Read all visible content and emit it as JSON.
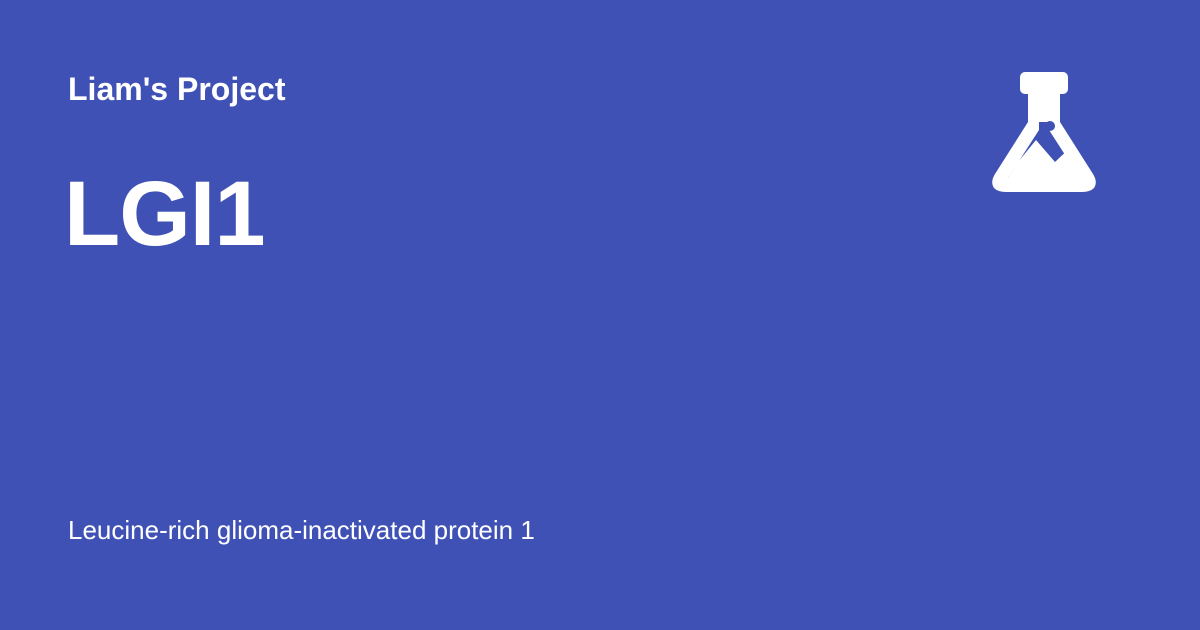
{
  "card": {
    "background_color": "#3f51b5",
    "text_color": "#ffffff",
    "project_name": "Liam's Project",
    "title": "LGI1",
    "subtitle": "Leucine-rich glioma-inactivated protein 1",
    "icon": "flask-icon"
  }
}
